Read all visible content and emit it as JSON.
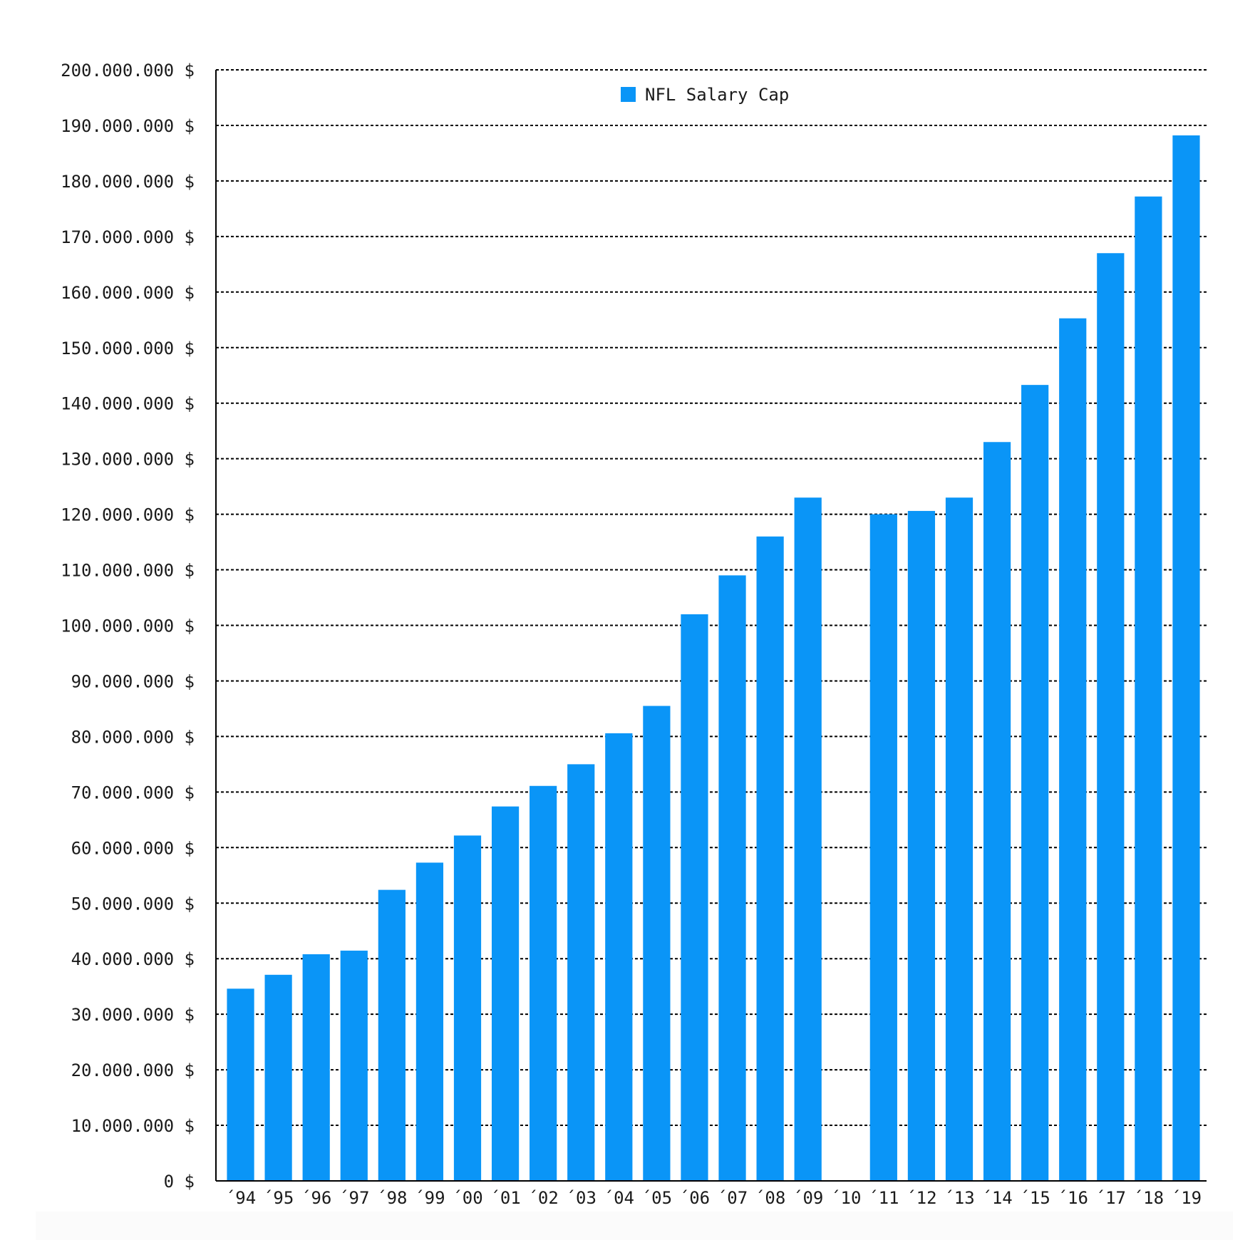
{
  "chart_data": {
    "type": "bar",
    "title": "",
    "xlabel": "",
    "ylabel": "",
    "ylim": [
      0,
      200000000
    ],
    "yticks": [
      0,
      10000000,
      20000000,
      30000000,
      40000000,
      50000000,
      60000000,
      70000000,
      80000000,
      90000000,
      100000000,
      110000000,
      120000000,
      130000000,
      140000000,
      150000000,
      160000000,
      170000000,
      180000000,
      190000000,
      200000000
    ],
    "ytick_labels": [
      "0 $",
      "10.000.000 $",
      "20.000.000 $",
      "30.000.000 $",
      "40.000.000 $",
      "50.000.000 $",
      "60.000.000 $",
      "70.000.000 $",
      "80.000.000 $",
      "90.000.000 $",
      "100.000.000 $",
      "110.000.000 $",
      "120.000.000 $",
      "130.000.000 $",
      "140.000.000 $",
      "150.000.000 $",
      "160.000.000 $",
      "170.000.000 $",
      "180.000.000 $",
      "190.000.000 $",
      "200.000.000 $"
    ],
    "categories": [
      "´94",
      "´95",
      "´96",
      "´97",
      "´98",
      "´99",
      "´00",
      "´01",
      "´02",
      "´03",
      "´04",
      "´05",
      "´06",
      "´07",
      "´08",
      "´09",
      "´10",
      "´11",
      "´12",
      "´13",
      "´14",
      "´15",
      "´16",
      "´17",
      "´18",
      "´19"
    ],
    "series": [
      {
        "name": "NFL Salary Cap",
        "color": "#0a95f7",
        "values": [
          34600000,
          37100000,
          40800000,
          41450000,
          52390000,
          57290000,
          62170000,
          67400000,
          71100000,
          75000000,
          80580000,
          85500000,
          102000000,
          109000000,
          116000000,
          123000000,
          null,
          120000000,
          120600000,
          123000000,
          133000000,
          143280000,
          155270000,
          167000000,
          177200000,
          188200000
        ]
      }
    ],
    "grid": true,
    "grid_style": "dotted",
    "legend_position": "top-center"
  }
}
